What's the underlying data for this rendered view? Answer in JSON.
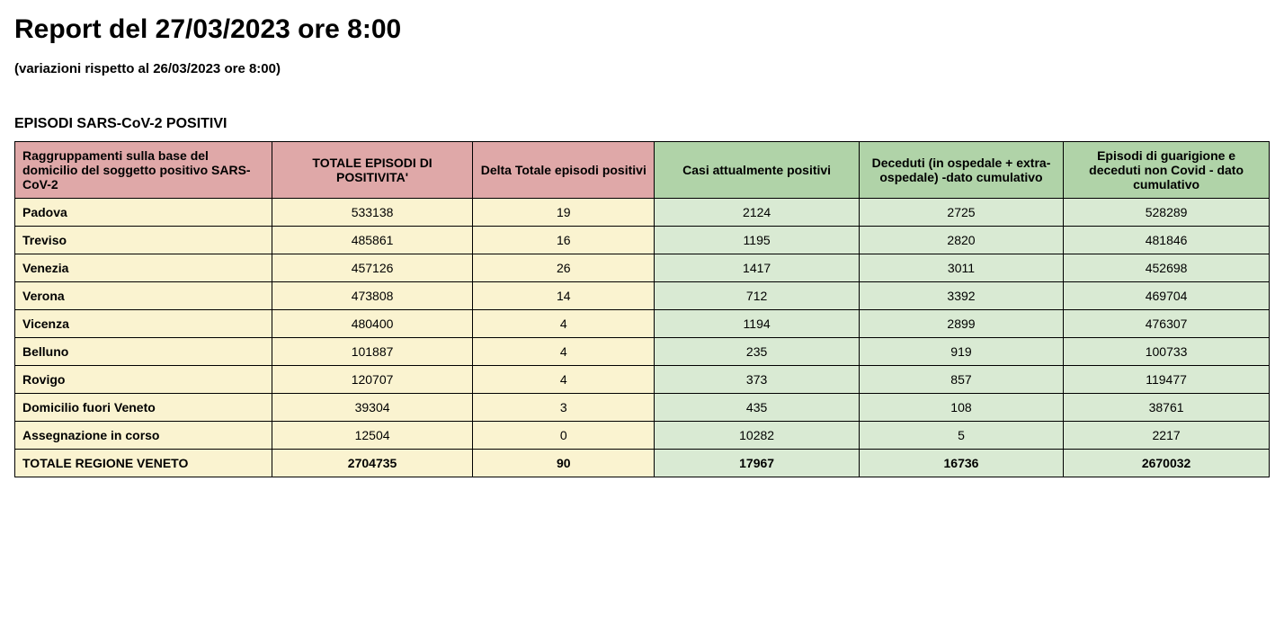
{
  "header": {
    "title": "Report del 27/03/2023 ore 8:00",
    "subtitle": "(variazioni rispetto al 26/03/2023 ore 8:00)",
    "section_title": "EPISODI SARS-CoV-2 POSITIVI"
  },
  "table": {
    "type": "table",
    "colors": {
      "header_pink": "#dfa8a8",
      "header_green": "#b0d3a8",
      "cell_yellow": "#faf3d0",
      "cell_green": "#d9ead3",
      "border": "#000000",
      "text": "#000000",
      "background": "#ffffff"
    },
    "columns": [
      {
        "label": "Raggruppamenti sulla base del domicilio del soggetto positivo SARS-CoV-2",
        "header_color": "pink",
        "cell_color": "yellow",
        "align": "left",
        "width_pct": 20.5
      },
      {
        "label": "TOTALE EPISODI DI POSITIVITA'",
        "header_color": "pink",
        "cell_color": "yellow",
        "align": "center",
        "width_pct": 16.0
      },
      {
        "label": "Delta Totale episodi positivi",
        "header_color": "pink",
        "cell_color": "yellow",
        "align": "center",
        "width_pct": 14.5
      },
      {
        "label": "Casi attualmente positivi",
        "header_color": "green",
        "cell_color": "green",
        "align": "center",
        "width_pct": 16.3
      },
      {
        "label": "Deceduti (in ospedale + extra-ospedale) -dato cumulativo",
        "header_color": "green",
        "cell_color": "green",
        "align": "center",
        "width_pct": 16.3
      },
      {
        "label": "Episodi di guarigione e deceduti non Covid - dato cumulativo",
        "header_color": "green",
        "cell_color": "green",
        "align": "center",
        "width_pct": 16.4
      }
    ],
    "rows": [
      [
        "Padova",
        "533138",
        "19",
        "2124",
        "2725",
        "528289"
      ],
      [
        "Treviso",
        "485861",
        "16",
        "1195",
        "2820",
        "481846"
      ],
      [
        "Venezia",
        "457126",
        "26",
        "1417",
        "3011",
        "452698"
      ],
      [
        "Verona",
        "473808",
        "14",
        "712",
        "3392",
        "469704"
      ],
      [
        "Vicenza",
        "480400",
        "4",
        "1194",
        "2899",
        "476307"
      ],
      [
        "Belluno",
        "101887",
        "4",
        "235",
        "919",
        "100733"
      ],
      [
        "Rovigo",
        "120707",
        "4",
        "373",
        "857",
        "119477"
      ],
      [
        "Domicilio fuori Veneto",
        "39304",
        "3",
        "435",
        "108",
        "38761"
      ],
      [
        "Assegnazione in corso",
        "12504",
        "0",
        "10282",
        "5",
        "2217"
      ]
    ],
    "total_row": [
      "TOTALE REGIONE VENETO",
      "2704735",
      "90",
      "17967",
      "16736",
      "2670032"
    ],
    "fontsize_header": 14,
    "fontsize_cell": 14,
    "fontsize_title": 30,
    "fontsize_subtitle": 15,
    "fontsize_section": 16
  }
}
